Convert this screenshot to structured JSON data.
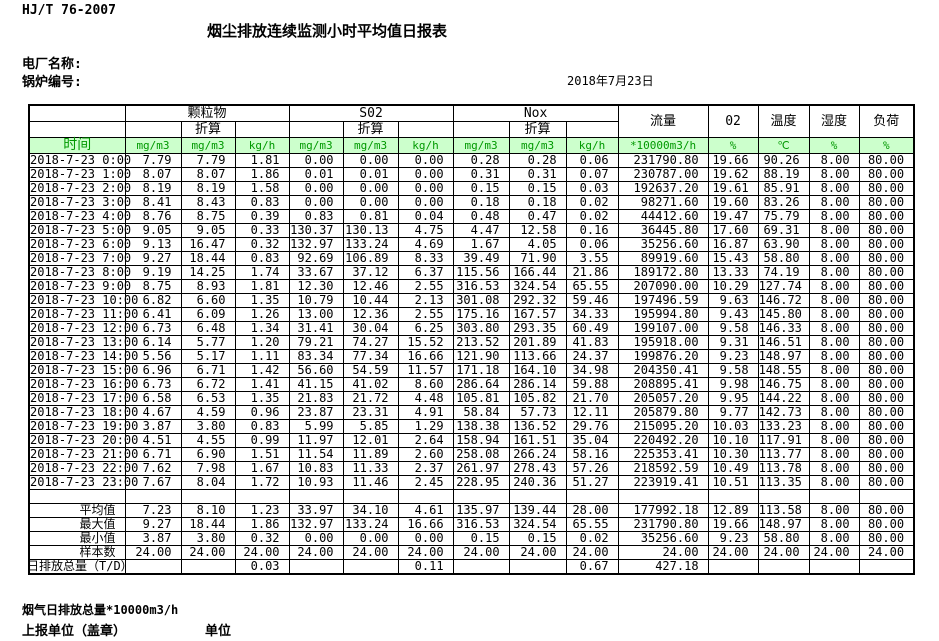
{
  "colors": {
    "units_row_bg": "#ccffcc",
    "units_row_text": "#009900",
    "border": "#000000"
  },
  "doc": {
    "standard": "HJ/T  76-2007",
    "title": "烟尘排放连续监测小时平均值日报表",
    "plant_label": "电厂名称:",
    "boiler_label": "锅炉编号:",
    "date": "2018年7月23日"
  },
  "table": {
    "group_headers": {
      "particulate": "颗粒物",
      "so2": "S02",
      "nox": "Nox",
      "flow": "流量",
      "o2": "02",
      "temperature": "温度",
      "humidity": "湿度",
      "load": "负荷"
    },
    "converted": "折算",
    "units_row": [
      "时间",
      "mg/m3",
      "mg/m3",
      "kg/h",
      "mg/m3",
      "mg/m3",
      "kg/h",
      "mg/m3",
      "mg/m3",
      "kg/h",
      "*10000m3/h",
      "%",
      "℃",
      "%",
      "%"
    ],
    "rows": [
      {
        "time": "2018-7-23 0:00",
        "values": [
          "7.79",
          "7.79",
          "1.81",
          "0.00",
          "0.00",
          "0.00",
          "0.28",
          "0.28",
          "0.06",
          "231790.80",
          "19.66",
          "90.26",
          "8.00",
          "80.00"
        ]
      },
      {
        "time": "2018-7-23 1:00",
        "values": [
          "8.07",
          "8.07",
          "1.86",
          "0.01",
          "0.01",
          "0.00",
          "0.31",
          "0.31",
          "0.07",
          "230787.00",
          "19.62",
          "88.19",
          "8.00",
          "80.00"
        ]
      },
      {
        "time": "2018-7-23 2:00",
        "values": [
          "8.19",
          "8.19",
          "1.58",
          "0.00",
          "0.00",
          "0.00",
          "0.15",
          "0.15",
          "0.03",
          "192637.20",
          "19.61",
          "85.91",
          "8.00",
          "80.00"
        ]
      },
      {
        "time": "2018-7-23 3:00",
        "values": [
          "8.41",
          "8.43",
          "0.83",
          "0.00",
          "0.00",
          "0.00",
          "0.18",
          "0.18",
          "0.02",
          "98271.60",
          "19.60",
          "83.26",
          "8.00",
          "80.00"
        ]
      },
      {
        "time": "2018-7-23 4:00",
        "values": [
          "8.76",
          "8.75",
          "0.39",
          "0.83",
          "0.81",
          "0.04",
          "0.48",
          "0.47",
          "0.02",
          "44412.60",
          "19.47",
          "75.79",
          "8.00",
          "80.00"
        ]
      },
      {
        "time": "2018-7-23 5:00",
        "values": [
          "9.05",
          "9.05",
          "0.33",
          "130.37",
          "130.13",
          "4.75",
          "4.47",
          "12.58",
          "0.16",
          "36445.80",
          "17.60",
          "69.31",
          "8.00",
          "80.00"
        ]
      },
      {
        "time": "2018-7-23 6:00",
        "values": [
          "9.13",
          "16.47",
          "0.32",
          "132.97",
          "133.24",
          "4.69",
          "1.67",
          "4.05",
          "0.06",
          "35256.60",
          "16.87",
          "63.90",
          "8.00",
          "80.00"
        ]
      },
      {
        "time": "2018-7-23 7:00",
        "values": [
          "9.27",
          "18.44",
          "0.83",
          "92.69",
          "106.89",
          "8.33",
          "39.49",
          "71.90",
          "3.55",
          "89919.60",
          "15.43",
          "58.80",
          "8.00",
          "80.00"
        ]
      },
      {
        "time": "2018-7-23 8:00",
        "values": [
          "9.19",
          "14.25",
          "1.74",
          "33.67",
          "37.12",
          "6.37",
          "115.56",
          "166.44",
          "21.86",
          "189172.80",
          "13.33",
          "74.19",
          "8.00",
          "80.00"
        ]
      },
      {
        "time": "2018-7-23 9:00",
        "values": [
          "8.75",
          "8.93",
          "1.81",
          "12.30",
          "12.46",
          "2.55",
          "316.53",
          "324.54",
          "65.55",
          "207090.00",
          "10.29",
          "127.74",
          "8.00",
          "80.00"
        ]
      },
      {
        "time": "2018-7-23 10:00",
        "values": [
          "6.82",
          "6.60",
          "1.35",
          "10.79",
          "10.44",
          "2.13",
          "301.08",
          "292.32",
          "59.46",
          "197496.59",
          "9.63",
          "146.72",
          "8.00",
          "80.00"
        ]
      },
      {
        "time": "2018-7-23 11:00",
        "values": [
          "6.41",
          "6.09",
          "1.26",
          "13.00",
          "12.36",
          "2.55",
          "175.16",
          "167.57",
          "34.33",
          "195994.80",
          "9.43",
          "145.80",
          "8.00",
          "80.00"
        ]
      },
      {
        "time": "2018-7-23 12:00",
        "values": [
          "6.73",
          "6.48",
          "1.34",
          "31.41",
          "30.04",
          "6.25",
          "303.80",
          "293.35",
          "60.49",
          "199107.00",
          "9.58",
          "146.33",
          "8.00",
          "80.00"
        ]
      },
      {
        "time": "2018-7-23 13:00",
        "values": [
          "6.14",
          "5.77",
          "1.20",
          "79.21",
          "74.27",
          "15.52",
          "213.52",
          "201.89",
          "41.83",
          "195918.00",
          "9.31",
          "146.51",
          "8.00",
          "80.00"
        ]
      },
      {
        "time": "2018-7-23 14:00",
        "values": [
          "5.56",
          "5.17",
          "1.11",
          "83.34",
          "77.34",
          "16.66",
          "121.90",
          "113.66",
          "24.37",
          "199876.20",
          "9.23",
          "148.97",
          "8.00",
          "80.00"
        ]
      },
      {
        "time": "2018-7-23 15:00",
        "values": [
          "6.96",
          "6.71",
          "1.42",
          "56.60",
          "54.59",
          "11.57",
          "171.18",
          "164.10",
          "34.98",
          "204350.41",
          "9.58",
          "148.55",
          "8.00",
          "80.00"
        ]
      },
      {
        "time": "2018-7-23 16:00",
        "values": [
          "6.73",
          "6.72",
          "1.41",
          "41.15",
          "41.02",
          "8.60",
          "286.64",
          "286.14",
          "59.88",
          "208895.41",
          "9.98",
          "146.75",
          "8.00",
          "80.00"
        ]
      },
      {
        "time": "2018-7-23 17:00",
        "values": [
          "6.58",
          "6.53",
          "1.35",
          "21.83",
          "21.72",
          "4.48",
          "105.81",
          "105.82",
          "21.70",
          "205057.20",
          "9.95",
          "144.22",
          "8.00",
          "80.00"
        ]
      },
      {
        "time": "2018-7-23 18:00",
        "values": [
          "4.67",
          "4.59",
          "0.96",
          "23.87",
          "23.31",
          "4.91",
          "58.84",
          "57.73",
          "12.11",
          "205879.80",
          "9.77",
          "142.73",
          "8.00",
          "80.00"
        ]
      },
      {
        "time": "2018-7-23 19:00",
        "values": [
          "3.87",
          "3.80",
          "0.83",
          "5.99",
          "5.85",
          "1.29",
          "138.38",
          "136.52",
          "29.76",
          "215095.20",
          "10.03",
          "133.23",
          "8.00",
          "80.00"
        ]
      },
      {
        "time": "2018-7-23 20:00",
        "values": [
          "4.51",
          "4.55",
          "0.99",
          "11.97",
          "12.01",
          "2.64",
          "158.94",
          "161.51",
          "35.04",
          "220492.20",
          "10.10",
          "117.91",
          "8.00",
          "80.00"
        ]
      },
      {
        "time": "2018-7-23 21:00",
        "values": [
          "6.71",
          "6.90",
          "1.51",
          "11.54",
          "11.89",
          "2.60",
          "258.08",
          "266.24",
          "58.16",
          "225353.41",
          "10.30",
          "113.77",
          "8.00",
          "80.00"
        ]
      },
      {
        "time": "2018-7-23 22:00",
        "values": [
          "7.62",
          "7.98",
          "1.67",
          "10.83",
          "11.33",
          "2.37",
          "261.97",
          "278.43",
          "57.26",
          "218592.59",
          "10.49",
          "113.78",
          "8.00",
          "80.00"
        ]
      },
      {
        "time": "2018-7-23 23:00",
        "values": [
          "7.67",
          "8.04",
          "1.72",
          "10.93",
          "11.46",
          "2.45",
          "228.95",
          "240.36",
          "51.27",
          "223919.41",
          "10.51",
          "113.35",
          "8.00",
          "80.00"
        ]
      }
    ],
    "summary_rows": [
      {
        "label": "平均值",
        "values": [
          "7.23",
          "8.10",
          "1.23",
          "33.97",
          "34.10",
          "4.61",
          "135.97",
          "139.44",
          "28.00",
          "177992.18",
          "12.89",
          "113.58",
          "8.00",
          "80.00"
        ]
      },
      {
        "label": "最大值",
        "values": [
          "9.27",
          "18.44",
          "1.86",
          "132.97",
          "133.24",
          "16.66",
          "316.53",
          "324.54",
          "65.55",
          "231790.80",
          "19.66",
          "148.97",
          "8.00",
          "80.00"
        ]
      },
      {
        "label": "最小值",
        "values": [
          "3.87",
          "3.80",
          "0.32",
          "0.00",
          "0.00",
          "0.00",
          "0.15",
          "0.15",
          "0.02",
          "35256.60",
          "9.23",
          "58.80",
          "8.00",
          "80.00"
        ]
      },
      {
        "label": "样本数",
        "values": [
          "24.00",
          "24.00",
          "24.00",
          "24.00",
          "24.00",
          "24.00",
          "24.00",
          "24.00",
          "24.00",
          "24.00",
          "24.00",
          "24.00",
          "24.00",
          "24.00"
        ]
      }
    ],
    "total_row": {
      "label": "日排放总量（T/D）",
      "values": [
        "",
        "",
        "0.03",
        "",
        "",
        "0.11",
        "",
        "",
        "0.67",
        "427.18",
        "",
        "",
        "",
        ""
      ]
    }
  },
  "footer": {
    "flue_total": "烟气日排放总量*10000m3/h",
    "report_unit_label": "上报单位（盖章）",
    "unit_label": "单位"
  }
}
